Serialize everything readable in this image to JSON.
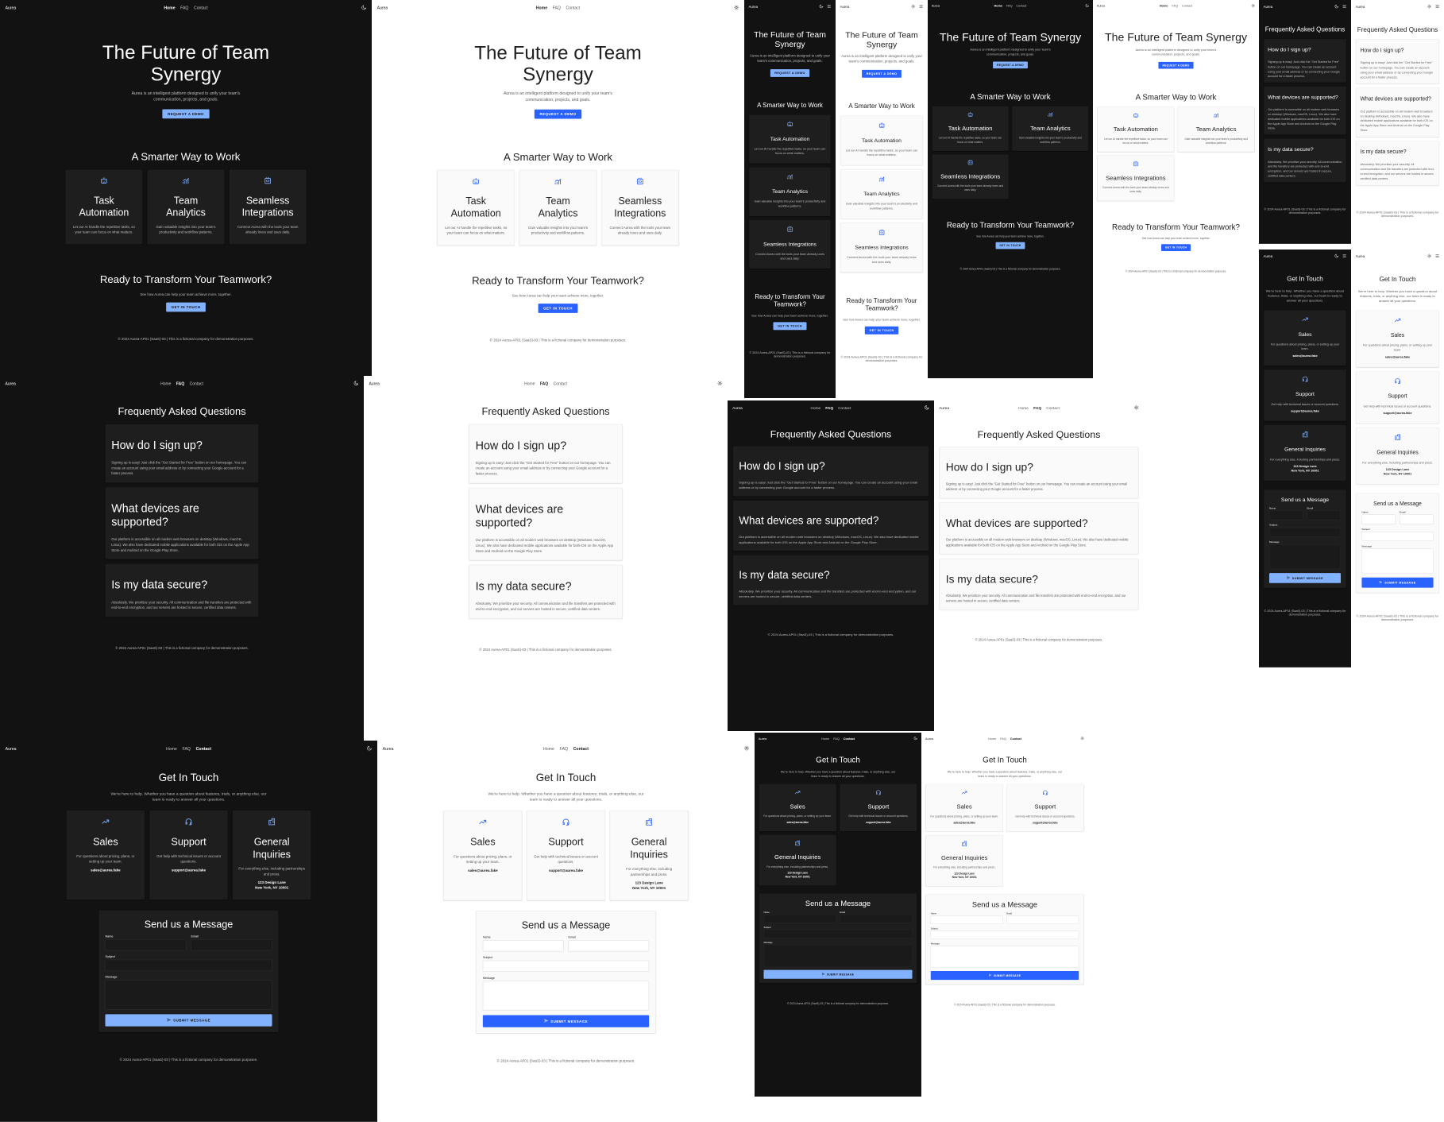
{
  "brand": "Aurea",
  "nav": {
    "links": [
      "Home",
      "FAQ",
      "Contact"
    ],
    "theme_toggle_icon": "theme-toggle-icon",
    "menu_icon": "menu-icon"
  },
  "home": {
    "hero": {
      "title": "The Future of Team Synergy",
      "subtitle": "Aurea is an intelligent platform designed to unify your team's communication, projects, and goals.",
      "button": "Request a Demo"
    },
    "features": {
      "title": "A Smarter Way to Work",
      "items": [
        {
          "icon": "robot-icon",
          "title": "Task Automation",
          "desc": "Let our AI handle the repetitive tasks, so your team can focus on what matters."
        },
        {
          "icon": "analytics-icon",
          "title": "Team Analytics",
          "desc": "Gain valuable insights into your team's productivity and workflow patterns."
        },
        {
          "icon": "integration-icon",
          "title": "Seamless Integrations",
          "desc": "Connect Aurea with the tools your team already loves and uses daily."
        }
      ]
    },
    "cta": {
      "title": "Ready to Transform Your Teamwork?",
      "text": "See how Aurea can help your team achieve more, together.",
      "button": "Get In Touch"
    }
  },
  "faq": {
    "title": "Frequently Asked Questions",
    "items": [
      {
        "q": "How do I sign up?",
        "a": "Signing up is easy! Just click the \"Get Started for Free\" button on our homepage. You can create an account using your email address or by connecting your Google account for a faster process."
      },
      {
        "q": "What devices are supported?",
        "a": "Our platform is accessible on all modern web browsers on desktop (Windows, macOS, Linux). We also have dedicated mobile applications available for both iOS on the Apple App Store and Android on the Google Play Store."
      },
      {
        "q": "Is my data secure?",
        "a": "Absolutely. We prioritize your security. All communication and file transfers are protected with end-to-end encryption, and our servers are hosted in secure, certified data centers."
      }
    ]
  },
  "contact": {
    "title": "Get In Touch",
    "subtitle": "We're here to help. Whether you have a question about features, trials, or anything else, our team is ready to answer all your questions.",
    "cards": [
      {
        "icon": "trending-up-icon",
        "title": "Sales",
        "desc": "For questions about pricing, plans, or setting up your team.",
        "detail1": "sales@aurea.fake",
        "detail2": ""
      },
      {
        "icon": "headset-icon",
        "title": "Support",
        "desc": "Get help with technical issues or account questions.",
        "detail1": "support@aurea.fake",
        "detail2": ""
      },
      {
        "icon": "building-icon",
        "title": "General Inquiries",
        "desc": "For everything else, including partnerships and press.",
        "detail1": "123 Design Lane",
        "detail2": "New York, NY 10001"
      }
    ],
    "form": {
      "title": "Send us a Message",
      "name_label": "Name",
      "email_label": "Email",
      "subject_label": "Subject",
      "message_label": "Message",
      "submit": "Submit Message"
    }
  },
  "footer": "© 2024 Aurea-AP01 (SaaS)-03 | This is a fictional company for demonstration purposes.",
  "colors": {
    "dark_bg": "#121212",
    "dark_card": "#1e1e1e",
    "dark_accent": "#82b1ff",
    "light_bg": "#ffffff",
    "light_card": "#fafafa",
    "light_accent": "#2962ff"
  }
}
